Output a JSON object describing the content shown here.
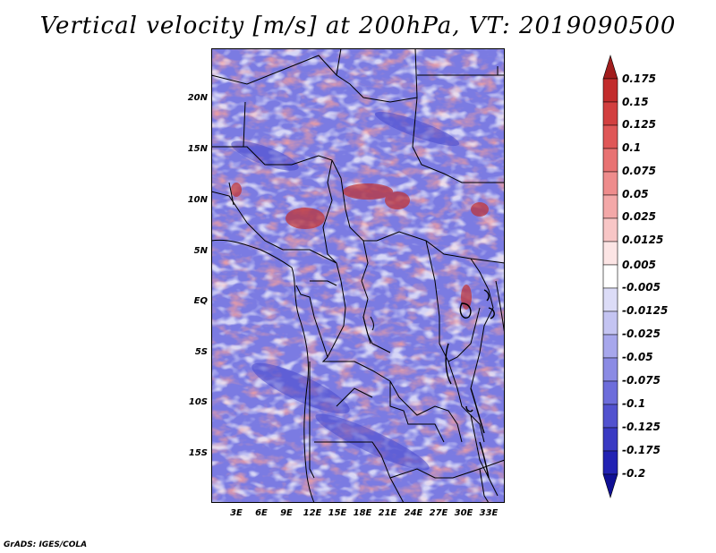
{
  "title": "Vertical velocity [m/s] at 200hPa, VT: 2019090500",
  "credit": "GrADS: IGES/COLA",
  "map": {
    "lat_labels": [
      "20N",
      "15N",
      "10N",
      "5N",
      "EQ",
      "5S",
      "10S",
      "15S"
    ],
    "lon_labels": [
      "3E",
      "6E",
      "9E",
      "12E",
      "15E",
      "18E",
      "21E",
      "24E",
      "27E",
      "30E",
      "33E"
    ]
  },
  "colorbar": {
    "labels": [
      "0.175",
      "0.15",
      "0.125",
      "0.1",
      "0.075",
      "0.05",
      "0.025",
      "0.0125",
      "0.005",
      "-0.005",
      "-0.0125",
      "-0.025",
      "-0.05",
      "-0.075",
      "-0.1",
      "-0.125",
      "-0.175",
      "-0.2"
    ],
    "colors": [
      "#a11d1d",
      "#c22c2c",
      "#d23f3f",
      "#df5757",
      "#e87272",
      "#ee8c8c",
      "#f3a8a8",
      "#f8c6c6",
      "#fce5e5",
      "#ffffff",
      "#dcdcf7",
      "#c4c4f2",
      "#a7a7ec",
      "#8b8be4",
      "#6d6ddb",
      "#5252cf",
      "#3a3ac3",
      "#2222b3",
      "#101095"
    ]
  },
  "colors": {
    "positive_max": "#a11d1d",
    "negative_max": "#101095",
    "border_line": "#000000"
  }
}
